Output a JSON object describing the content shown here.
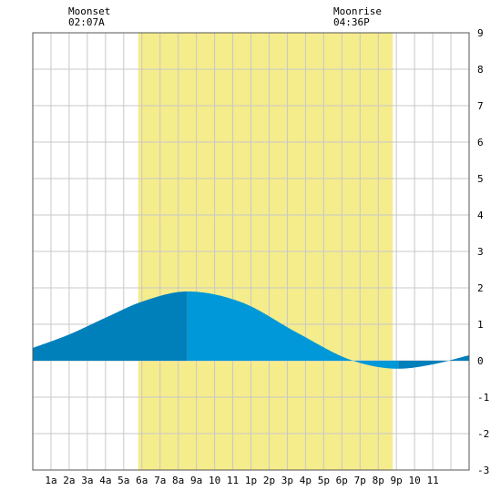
{
  "chart_data": {
    "type": "area",
    "title": "",
    "xlabel": "",
    "ylabel": "",
    "x_range_hours": [
      0,
      24
    ],
    "ylim": [
      -3,
      9
    ],
    "grid": true,
    "x_tick_labels": [
      "1a",
      "2a",
      "3a",
      "4a",
      "5a",
      "6a",
      "7a",
      "8a",
      "9a",
      "10",
      "11",
      "1p",
      "2p",
      "3p",
      "4p",
      "5p",
      "6p",
      "7p",
      "8p",
      "9p",
      "10",
      "11"
    ],
    "y_tick_labels": [
      "9",
      "8",
      "7",
      "6",
      "5",
      "4",
      "3",
      "2",
      "1",
      "0",
      "-1",
      "-2",
      "-3"
    ],
    "daylight_hours": [
      5.8,
      19.8
    ],
    "tide_series": {
      "name": "",
      "hours": [
        0,
        2,
        4,
        6,
        8.5,
        11.5,
        14.5,
        17.5,
        20.1,
        22.0,
        24
      ],
      "values": [
        0.35,
        0.72,
        1.18,
        1.62,
        1.9,
        1.6,
        0.78,
        0.02,
        -0.22,
        -0.1,
        0.15
      ]
    },
    "annotations": [
      {
        "id": "moonset",
        "label": "Moonset",
        "time": "02:07A",
        "hour": 2.12
      },
      {
        "id": "moonrise",
        "label": "Moonrise",
        "time": "04:36P",
        "hour": 16.6
      }
    ],
    "colors": {
      "daylight": "#f5ec8c",
      "tide_dark": "#0080bb",
      "tide_light": "#0098d8",
      "grid": "#c8c8c8",
      "background": "#ffffff"
    }
  }
}
